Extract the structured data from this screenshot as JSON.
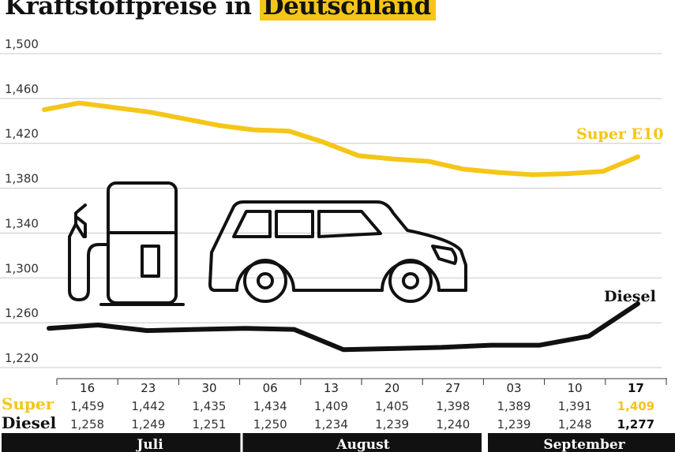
{
  "title": {
    "part1": "Kraftstoffpreise in ",
    "highlight": "Deutschland"
  },
  "colors": {
    "super": "#f5c518",
    "diesel": "#111111",
    "grid": "#c8c8c8",
    "month_bar": "#111111"
  },
  "icons": [
    "fuel-pump-icon",
    "car-icon"
  ],
  "table": {
    "row_labels": {
      "super": "Super",
      "diesel": "Diesel"
    }
  },
  "months": [
    "Juli",
    "August",
    "September"
  ],
  "chart_data": {
    "type": "line",
    "title": "Kraftstoffpreise in Deutschland",
    "categories": [
      "16",
      "23",
      "30",
      "06",
      "13",
      "20",
      "27",
      "03",
      "10",
      "17"
    ],
    "ylim": [
      1.22,
      1.5
    ],
    "yticks": [
      "1,220",
      "1,260",
      "1,300",
      "1,340",
      "1,380",
      "1,420",
      "1,460",
      "1,500"
    ],
    "ytick_values": [
      1.22,
      1.26,
      1.3,
      1.34,
      1.38,
      1.42,
      1.46,
      1.5
    ],
    "grid": true,
    "series": [
      {
        "name": "Super E10",
        "values": [
          1.459,
          1.442,
          1.435,
          1.434,
          1.409,
          1.405,
          1.398,
          1.389,
          1.391,
          1.409
        ],
        "labels": [
          "1,459",
          "1,442",
          "1,435",
          "1,434",
          "1,409",
          "1,405",
          "1,398",
          "1,389",
          "1,391",
          "1,409"
        ]
      },
      {
        "name": "Diesel",
        "values": [
          1.258,
          1.249,
          1.251,
          1.25,
          1.234,
          1.239,
          1.24,
          1.239,
          1.248,
          1.277
        ],
        "labels": [
          "1,258",
          "1,249",
          "1,251",
          "1,250",
          "1,234",
          "1,239",
          "1,240",
          "1,239",
          "1,248",
          "1,277"
        ]
      }
    ],
    "line_points": {
      "super": [
        1.45,
        1.456,
        1.452,
        1.448,
        1.442,
        1.436,
        1.432,
        1.431,
        1.421,
        1.409,
        1.406,
        1.404,
        1.397,
        1.394,
        1.392,
        1.393,
        1.395,
        1.408
      ],
      "diesel": [
        1.255,
        1.258,
        1.253,
        1.254,
        1.255,
        1.254,
        1.236,
        1.237,
        1.238,
        1.24,
        1.24,
        1.248,
        1.277
      ]
    }
  }
}
